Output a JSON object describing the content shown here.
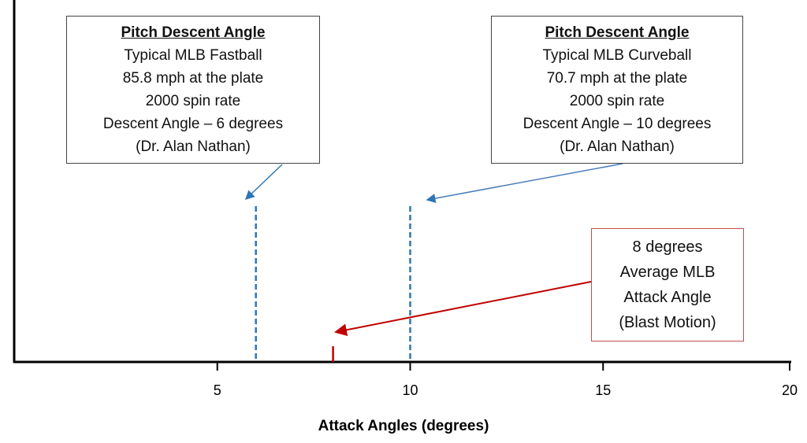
{
  "chart_data": {
    "type": "line",
    "xlabel": "Attack Angles (degrees)",
    "xlim": [
      0,
      20
    ],
    "xticks": [
      5,
      10,
      15,
      20
    ],
    "grid": false,
    "markers": [
      {
        "x": 6,
        "style": "dashed",
        "color": "#2e75b6"
      },
      {
        "x": 10,
        "style": "dashed",
        "color": "#2e75b6"
      },
      {
        "x": 8,
        "style": "solid",
        "color": "#c00000"
      }
    ],
    "annotations": [
      {
        "target_x": 6,
        "lines": [
          "Pitch Descent Angle",
          "Typical MLB Fastball",
          "85.8 mph at the plate",
          "2000 spin rate",
          "Descent Angle – 6 degrees",
          "(Dr. Alan Nathan)"
        ]
      },
      {
        "target_x": 10,
        "lines": [
          "Pitch Descent Angle",
          "Typical MLB Curveball",
          "70.7 mph at the plate",
          "2000 spin rate",
          "Descent Angle – 10 degrees",
          "(Dr. Alan Nathan)"
        ]
      },
      {
        "target_x": 8,
        "lines": [
          "8 degrees",
          "Average MLB",
          "Attack Angle",
          "(Blast Motion)"
        ]
      }
    ]
  }
}
